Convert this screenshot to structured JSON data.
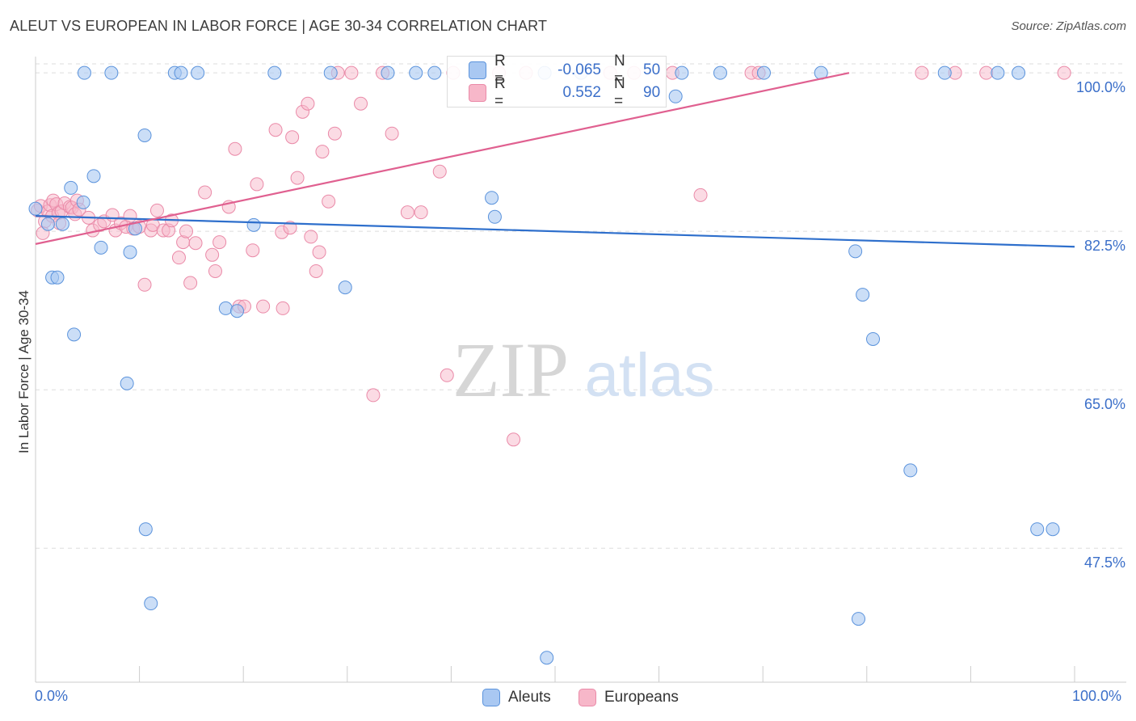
{
  "title": "ALEUT VS EUROPEAN IN LABOR FORCE | AGE 30-34 CORRELATION CHART",
  "source": "Source: ZipAtlas.com",
  "watermark": {
    "zip": "ZIP",
    "atlas": "atlas"
  },
  "colors": {
    "aleut_fill": "#a9c8f2",
    "aleut_stroke": "#5b93dc",
    "aleut_line": "#2e6fcc",
    "european_fill": "#f7b7c9",
    "european_stroke": "#ea8aa8",
    "european_line": "#e06090",
    "axis_text": "#3b6fc9",
    "grid": "#dddddd"
  },
  "stats": {
    "aleut": {
      "r_label": "R =",
      "r_value": "-0.065",
      "n_label": "N =",
      "n_value": "50"
    },
    "european": {
      "r_label": "R =",
      "r_value": "0.552",
      "n_label": "N =",
      "n_value": "90"
    }
  },
  "legend": {
    "aleuts": "Aleuts",
    "europeans": "Europeans"
  },
  "chart_data": {
    "type": "scatter",
    "title": "ALEUT VS EUROPEAN IN LABOR FORCE | AGE 30-34 CORRELATION CHART",
    "xlabel": "",
    "ylabel": "In Labor Force | Age 30-34",
    "xlim": [
      0,
      100
    ],
    "ylim": [
      32.7,
      101.8
    ],
    "x_tick_labels": [
      "0.0%",
      "100.0%"
    ],
    "y_ticks": [
      47.5,
      65.0,
      82.5,
      100.0
    ],
    "y_tick_labels": [
      "47.5%",
      "65.0%",
      "82.5%",
      "100.0%"
    ],
    "grid": true,
    "legend_position": "bottom",
    "series": [
      {
        "name": "Aleuts",
        "color": "#a9c8f2",
        "x": [
          0.0,
          1.2,
          1.6,
          2.1,
          2.6,
          3.4,
          3.7,
          4.6,
          5.6,
          6.3,
          4.7,
          7.3,
          8.8,
          9.1,
          9.6,
          10.5,
          10.6,
          11.1,
          13.4,
          14.0,
          15.6,
          18.3,
          19.4,
          21.0,
          23.0,
          28.4,
          29.8,
          33.9,
          36.6,
          38.4,
          43.9,
          44.2,
          49.0,
          49.2,
          52.5,
          61.6,
          62.2,
          65.9,
          70.1,
          75.6,
          78.9,
          79.6,
          79.2,
          80.6,
          84.2,
          87.5,
          92.6,
          94.6,
          96.4,
          97.9
        ],
        "y": [
          85.0,
          83.3,
          77.4,
          77.4,
          83.3,
          87.3,
          71.1,
          85.7,
          88.6,
          80.7,
          100.0,
          100.0,
          65.7,
          80.2,
          82.8,
          93.1,
          49.6,
          41.4,
          100.0,
          100.0,
          100.0,
          74.0,
          73.7,
          83.2,
          100.0,
          100.0,
          76.3,
          100.0,
          100.0,
          100.0,
          86.2,
          84.1,
          100.0,
          35.4,
          100.0,
          97.4,
          100.0,
          100.0,
          100.0,
          100.0,
          80.3,
          75.5,
          39.7,
          70.6,
          56.1,
          100.0,
          100.0,
          100.0,
          49.6,
          49.6
        ]
      },
      {
        "name": "Europeans",
        "color": "#f7b7c9",
        "x": [
          0.2,
          0.5,
          0.7,
          0.9,
          1.2,
          1.4,
          1.6,
          1.7,
          2.0,
          2.2,
          2.3,
          2.5,
          2.8,
          3.3,
          3.5,
          3.8,
          4.0,
          4.2,
          5.1,
          5.5,
          6.2,
          6.6,
          7.4,
          7.7,
          8.2,
          8.7,
          9.1,
          9.4,
          10.0,
          10.5,
          11.1,
          11.3,
          11.7,
          12.3,
          12.8,
          13.1,
          13.8,
          14.2,
          14.5,
          14.9,
          15.4,
          16.3,
          17.0,
          17.3,
          17.7,
          18.6,
          19.2,
          19.6,
          20.1,
          20.9,
          21.3,
          21.9,
          23.1,
          23.7,
          23.8,
          24.5,
          24.7,
          25.2,
          25.7,
          26.2,
          26.5,
          27.0,
          27.3,
          27.6,
          28.2,
          28.8,
          29.1,
          30.4,
          31.3,
          32.5,
          33.4,
          34.3,
          35.8,
          37.1,
          38.9,
          39.6,
          40.2,
          44.6,
          46.0,
          47.2,
          55.3,
          57.6,
          61.3,
          64.0,
          68.9,
          69.6,
          85.3,
          88.5,
          91.5,
          99.0
        ],
        "y": [
          84.8,
          85.3,
          82.3,
          83.6,
          84.7,
          85.4,
          84.2,
          85.9,
          85.5,
          84.5,
          83.4,
          84.7,
          85.6,
          85.2,
          85.1,
          84.4,
          85.9,
          84.9,
          84.0,
          82.6,
          83.2,
          83.6,
          84.3,
          82.6,
          83.4,
          83.0,
          84.2,
          82.8,
          83.0,
          76.6,
          82.6,
          83.2,
          84.8,
          82.6,
          82.6,
          83.7,
          79.6,
          81.3,
          82.5,
          76.8,
          81.2,
          86.8,
          79.9,
          78.1,
          81.3,
          85.2,
          91.6,
          74.2,
          74.2,
          80.4,
          87.7,
          74.2,
          93.7,
          82.4,
          74.0,
          82.9,
          92.9,
          88.4,
          95.7,
          96.6,
          81.9,
          78.1,
          80.2,
          91.3,
          85.8,
          93.3,
          100.0,
          100.0,
          96.6,
          64.4,
          100.0,
          93.3,
          84.6,
          84.6,
          89.1,
          66.6,
          100.0,
          100.0,
          59.5,
          100.0,
          100.0,
          100.0,
          100.0,
          86.5,
          100.0,
          100.0,
          100.0,
          100.0,
          100.0,
          100.0
        ]
      }
    ],
    "trend_lines": [
      {
        "name": "Aleuts",
        "x": [
          0,
          100
        ],
        "y": [
          84.2,
          80.8
        ]
      },
      {
        "name": "Europeans",
        "x": [
          0,
          78.3
        ],
        "y": [
          81.1,
          100.0
        ]
      }
    ]
  }
}
